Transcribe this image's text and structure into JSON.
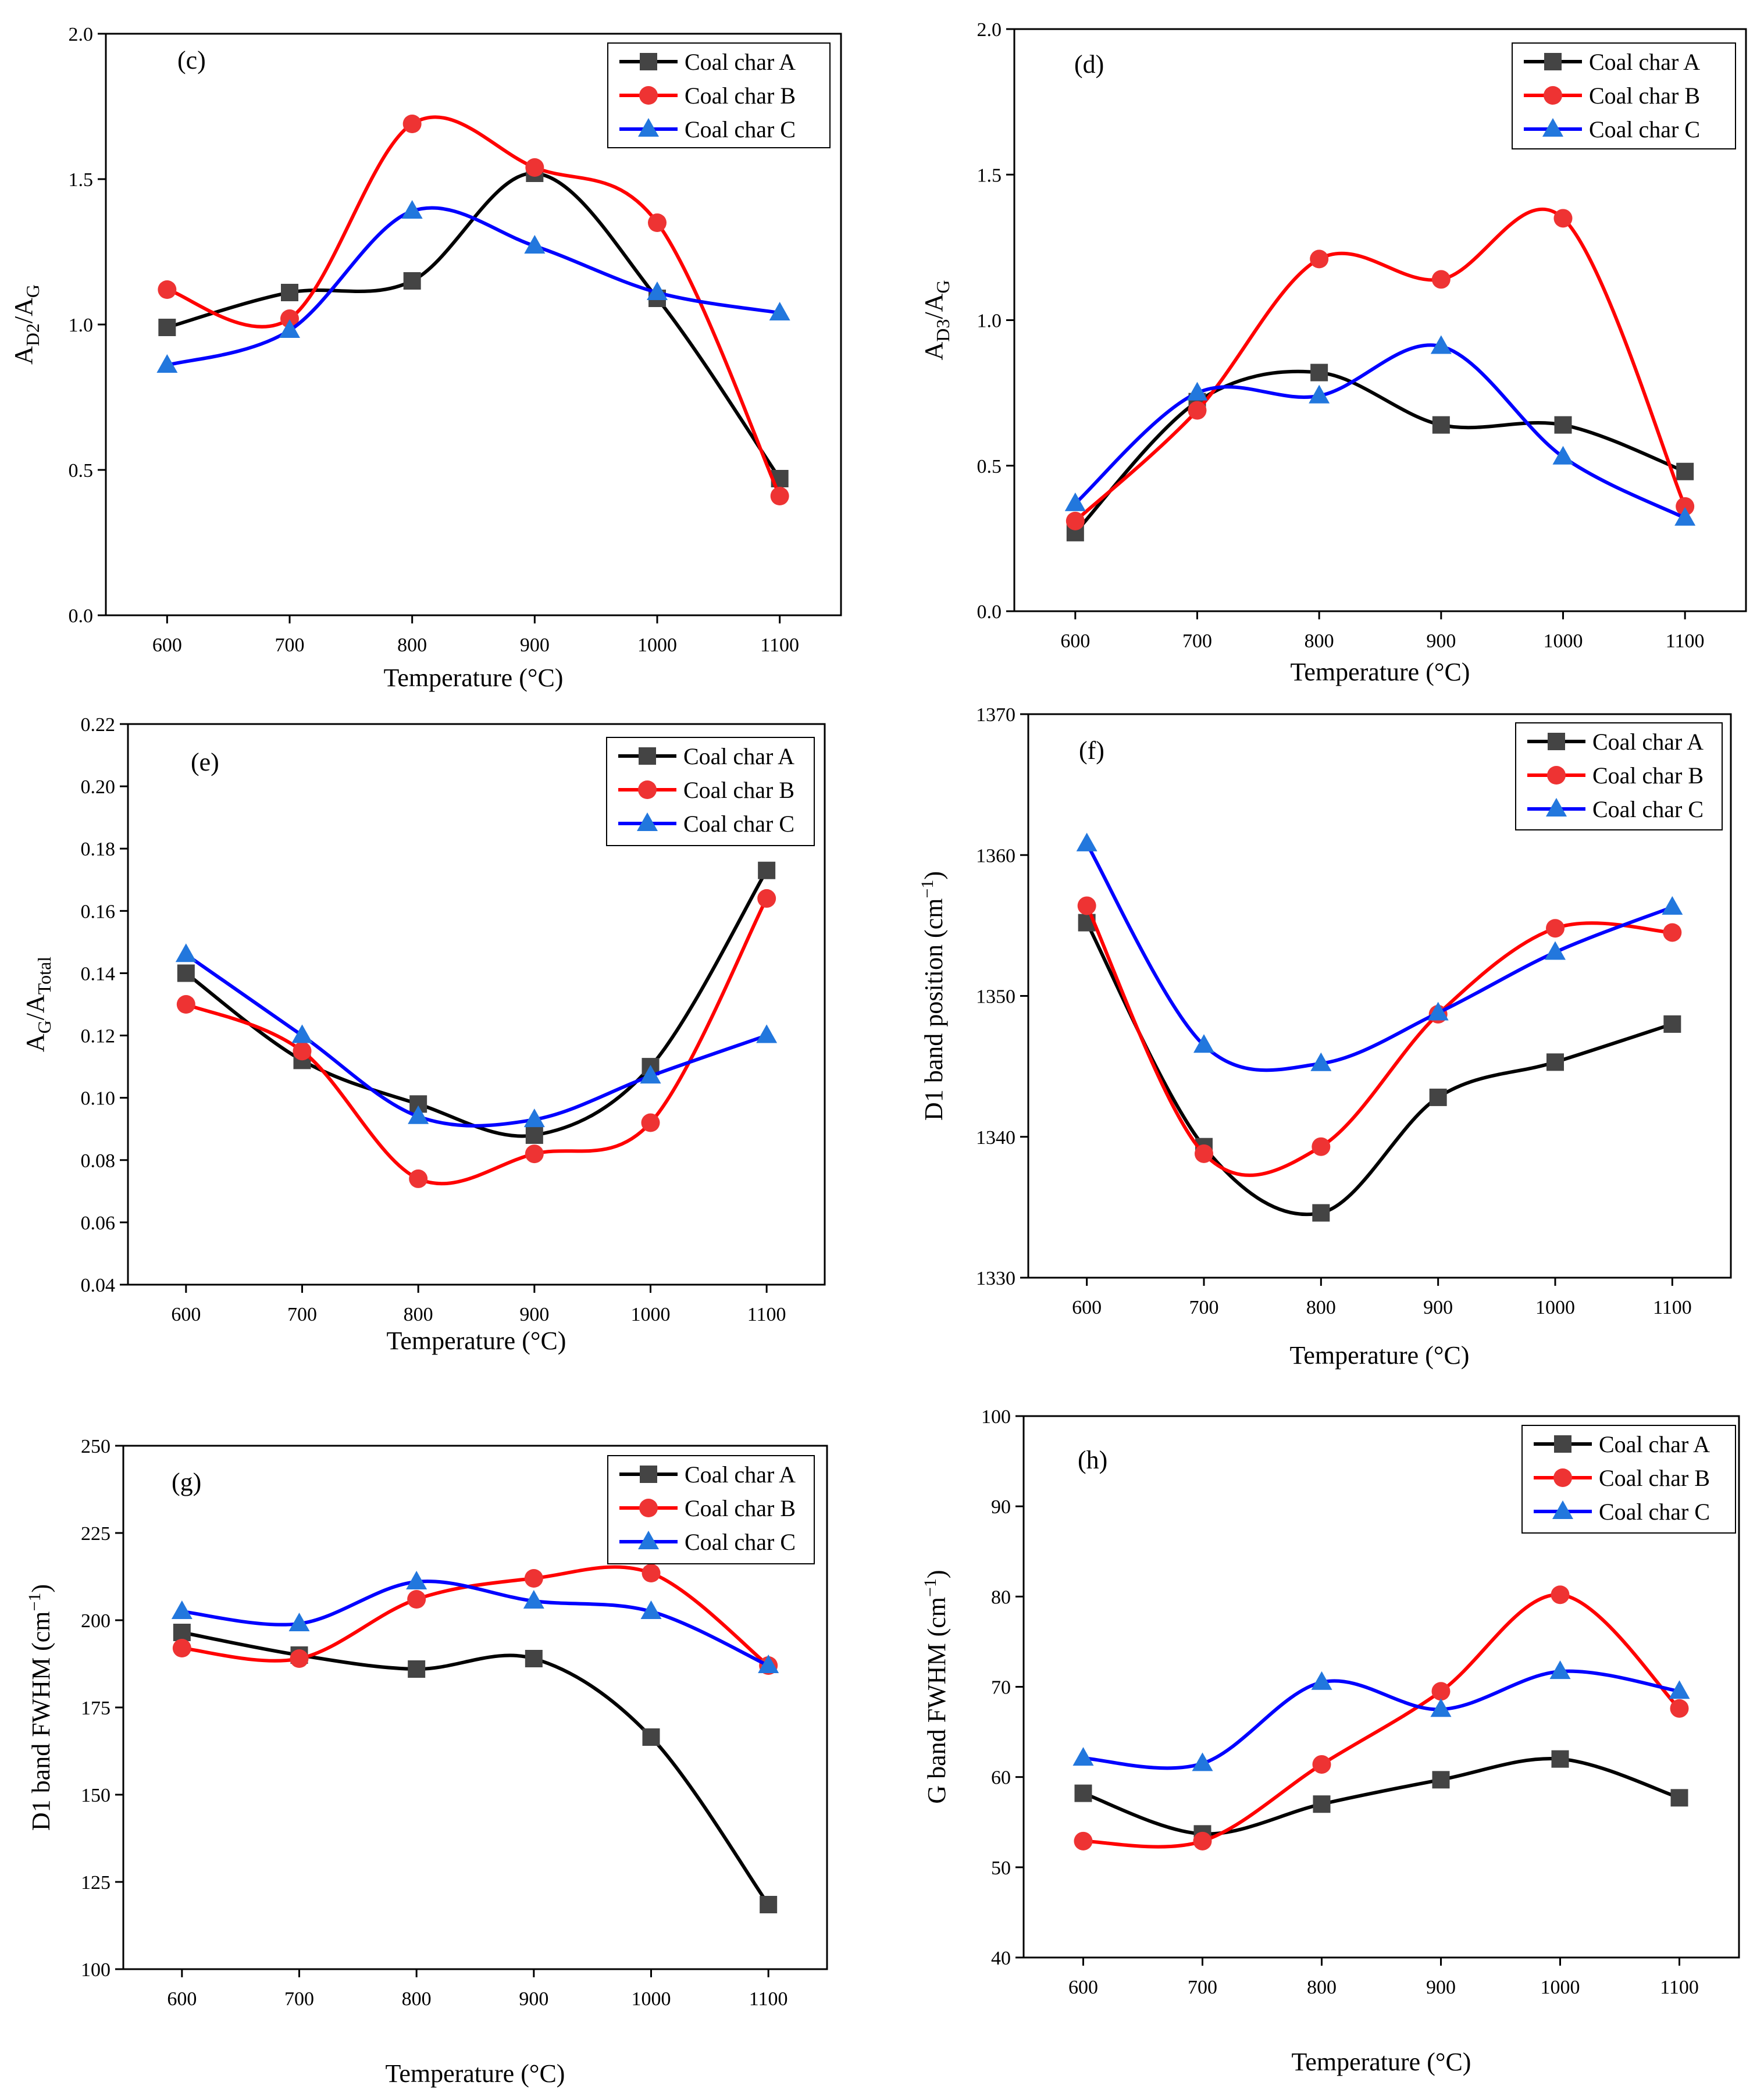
{
  "colors": {
    "coal_char_a": "#000000",
    "coal_char_a_marker": "#444444",
    "coal_char_b": "#ff0000",
    "coal_char_b_marker": "#ee3333",
    "coal_char_c": "#0000ff",
    "coal_char_c_marker": "#2277dd",
    "coal_char_c_alt": "#1a1ae6"
  },
  "chart_data": [
    {
      "type": "line",
      "panel_label": "(c)",
      "xlabel": "Temperature (°C)",
      "ylabel": "A_D2/A_G",
      "ylabel_main": "A",
      "ylabel_sub1": "D2",
      "ylabel_mid": "/A",
      "ylabel_sub2": "G",
      "x": [
        600,
        700,
        800,
        900,
        1000,
        1100
      ],
      "x_tick_labels": [
        "600",
        "700",
        "800",
        "900",
        "1000",
        "1100"
      ],
      "y_ticks": [
        0.0,
        0.5,
        1.0,
        1.5,
        2.0
      ],
      "y_tick_labels": [
        "0.0",
        "0.5",
        "1.0",
        "1.5",
        "2.0"
      ],
      "xlim": [
        550,
        1150
      ],
      "ylim": [
        0.0,
        2.0
      ],
      "legend_position": "top-right",
      "series": [
        {
          "name": "Coal char A",
          "marker": "square",
          "values": [
            0.99,
            1.11,
            1.15,
            1.52,
            1.09,
            0.47
          ]
        },
        {
          "name": "Coal char B",
          "marker": "circle",
          "values": [
            1.12,
            1.02,
            1.69,
            1.54,
            1.35,
            0.41
          ]
        },
        {
          "name": "Coal char C",
          "marker": "triangle",
          "values": [
            0.86,
            0.98,
            1.39,
            1.27,
            1.11,
            1.04
          ]
        }
      ]
    },
    {
      "type": "line",
      "panel_label": "(d)",
      "xlabel": "Temperature (°C)",
      "ylabel": "A_D3/A_G",
      "ylabel_main": "A",
      "ylabel_sub1": "D3",
      "ylabel_mid": "/A",
      "ylabel_sub2": "G",
      "x": [
        600,
        700,
        800,
        900,
        1000,
        1100
      ],
      "x_tick_labels": [
        "600",
        "700",
        "800",
        "900",
        "1000",
        "1100"
      ],
      "y_ticks": [
        0.0,
        0.5,
        1.0,
        1.5,
        2.0
      ],
      "y_tick_labels": [
        "0.0",
        "0.5",
        "1.0",
        "1.5",
        "2.0"
      ],
      "xlim": [
        550,
        1150
      ],
      "ylim": [
        0.0,
        2.0
      ],
      "legend_position": "top-right",
      "series": [
        {
          "name": "Coal char A",
          "marker": "square",
          "values": [
            0.27,
            0.72,
            0.82,
            0.64,
            0.64,
            0.48
          ]
        },
        {
          "name": "Coal char B",
          "marker": "circle",
          "values": [
            0.31,
            0.69,
            1.21,
            1.14,
            1.35,
            0.36
          ]
        },
        {
          "name": "Coal char C",
          "marker": "triangle",
          "values": [
            0.37,
            0.75,
            0.74,
            0.91,
            0.53,
            0.32
          ]
        }
      ]
    },
    {
      "type": "line",
      "panel_label": "(e)",
      "xlabel": "Temperature (°C)",
      "ylabel": "A_G/A_Total",
      "ylabel_main": "A",
      "ylabel_sub1": "G",
      "ylabel_mid": "/A",
      "ylabel_sub2": "Total",
      "x": [
        600,
        700,
        800,
        900,
        1000,
        1100
      ],
      "x_tick_labels": [
        "600",
        "700",
        "800",
        "900",
        "1000",
        "1100"
      ],
      "y_ticks": [
        0.04,
        0.06,
        0.08,
        0.1,
        0.12,
        0.14,
        0.16,
        0.18,
        0.2,
        0.22
      ],
      "y_tick_labels": [
        "0.04",
        "0.06",
        "0.08",
        "0.10",
        "0.12",
        "0.14",
        "0.16",
        "0.18",
        "0.20",
        "0.22"
      ],
      "xlim": [
        550,
        1150
      ],
      "ylim": [
        0.04,
        0.22
      ],
      "legend_position": "top-right",
      "series": [
        {
          "name": "Coal char A",
          "marker": "square",
          "values": [
            0.14,
            0.112,
            0.098,
            0.088,
            0.11,
            0.173
          ]
        },
        {
          "name": "Coal char B",
          "marker": "circle",
          "values": [
            0.13,
            0.115,
            0.074,
            0.082,
            0.092,
            0.164
          ]
        },
        {
          "name": "Coal char C",
          "marker": "triangle",
          "values": [
            0.146,
            0.12,
            0.094,
            0.093,
            0.107,
            0.12
          ]
        }
      ]
    },
    {
      "type": "line",
      "panel_label": "(f)",
      "xlabel": "Temperature (°C)",
      "ylabel": "D1 band position (cm−1)",
      "ylabel_main": "D1 band position (cm",
      "ylabel_sup": "−1",
      "ylabel_tail": ")",
      "x": [
        600,
        700,
        800,
        900,
        1000,
        1100
      ],
      "x_tick_labels": [
        "600",
        "700",
        "800",
        "900",
        "1000",
        "1100"
      ],
      "y_ticks": [
        1330,
        1340,
        1350,
        1360,
        1370
      ],
      "y_tick_labels": [
        "1330",
        "1340",
        "1350",
        "1360",
        "1370"
      ],
      "xlim": [
        550,
        1150
      ],
      "ylim": [
        1330,
        1370
      ],
      "legend_position": "top-right",
      "series": [
        {
          "name": "Coal char A",
          "marker": "square",
          "values": [
            1355.2,
            1339.3,
            1334.6,
            1342.8,
            1345.3,
            1348.0
          ]
        },
        {
          "name": "Coal char B",
          "marker": "circle",
          "values": [
            1356.4,
            1338.8,
            1339.3,
            1348.7,
            1354.8,
            1354.5
          ]
        },
        {
          "name": "Coal char C",
          "marker": "triangle",
          "values": [
            1360.8,
            1346.5,
            1345.2,
            1348.8,
            1353.1,
            1356.3
          ]
        }
      ]
    },
    {
      "type": "line",
      "panel_label": "(g)",
      "xlabel": "Temperature (°C)",
      "ylabel": "D1 band FWHM (cm−1)",
      "ylabel_main": "D1 band FWHM (cm",
      "ylabel_sup": "−1",
      "ylabel_tail": ")",
      "x": [
        600,
        700,
        800,
        900,
        1000,
        1100
      ],
      "x_tick_labels": [
        "600",
        "700",
        "800",
        "900",
        "1000",
        "1100"
      ],
      "y_ticks": [
        100,
        125,
        150,
        175,
        200,
        225,
        250
      ],
      "y_tick_labels": [
        "100",
        "125",
        "150",
        "175",
        "200",
        "225",
        "250"
      ],
      "xlim": [
        550,
        1150
      ],
      "ylim": [
        100,
        250
      ],
      "legend_position": "top-right",
      "series": [
        {
          "name": "Coal char A",
          "marker": "square",
          "values": [
            196.5,
            190.0,
            186.0,
            189.0,
            166.5,
            118.5
          ]
        },
        {
          "name": "Coal char B",
          "marker": "circle",
          "values": [
            192.0,
            189.0,
            206.0,
            212.0,
            213.5,
            187.0
          ]
        },
        {
          "name": "Coal char C",
          "marker": "triangle",
          "values": [
            202.5,
            199.0,
            211.0,
            205.5,
            202.5,
            187.0
          ]
        }
      ]
    },
    {
      "type": "line",
      "panel_label": "(h)",
      "xlabel": "Temperature (°C)",
      "ylabel": "G band FWHM (cm−1)",
      "ylabel_main": "G band FWHM (cm",
      "ylabel_sup": "−1",
      "ylabel_tail": ")",
      "x": [
        600,
        700,
        800,
        900,
        1000,
        1100
      ],
      "x_tick_labels": [
        "600",
        "700",
        "800",
        "900",
        "1000",
        "1100"
      ],
      "y_ticks": [
        40,
        50,
        60,
        70,
        80,
        90,
        100
      ],
      "y_tick_labels": [
        "40",
        "50",
        "60",
        "70",
        "80",
        "90",
        "100"
      ],
      "xlim": [
        550,
        1150
      ],
      "ylim": [
        40,
        100
      ],
      "legend_position": "top-right",
      "series": [
        {
          "name": "Coal char A",
          "marker": "square",
          "values": [
            58.2,
            53.7,
            57.0,
            59.7,
            62.0,
            57.7
          ]
        },
        {
          "name": "Coal char B",
          "marker": "circle",
          "values": [
            52.9,
            52.9,
            61.4,
            69.5,
            80.2,
            67.6
          ]
        },
        {
          "name": "Coal char C",
          "marker": "triangle",
          "values": [
            62.1,
            61.5,
            70.5,
            67.5,
            71.7,
            69.5
          ]
        }
      ]
    }
  ]
}
